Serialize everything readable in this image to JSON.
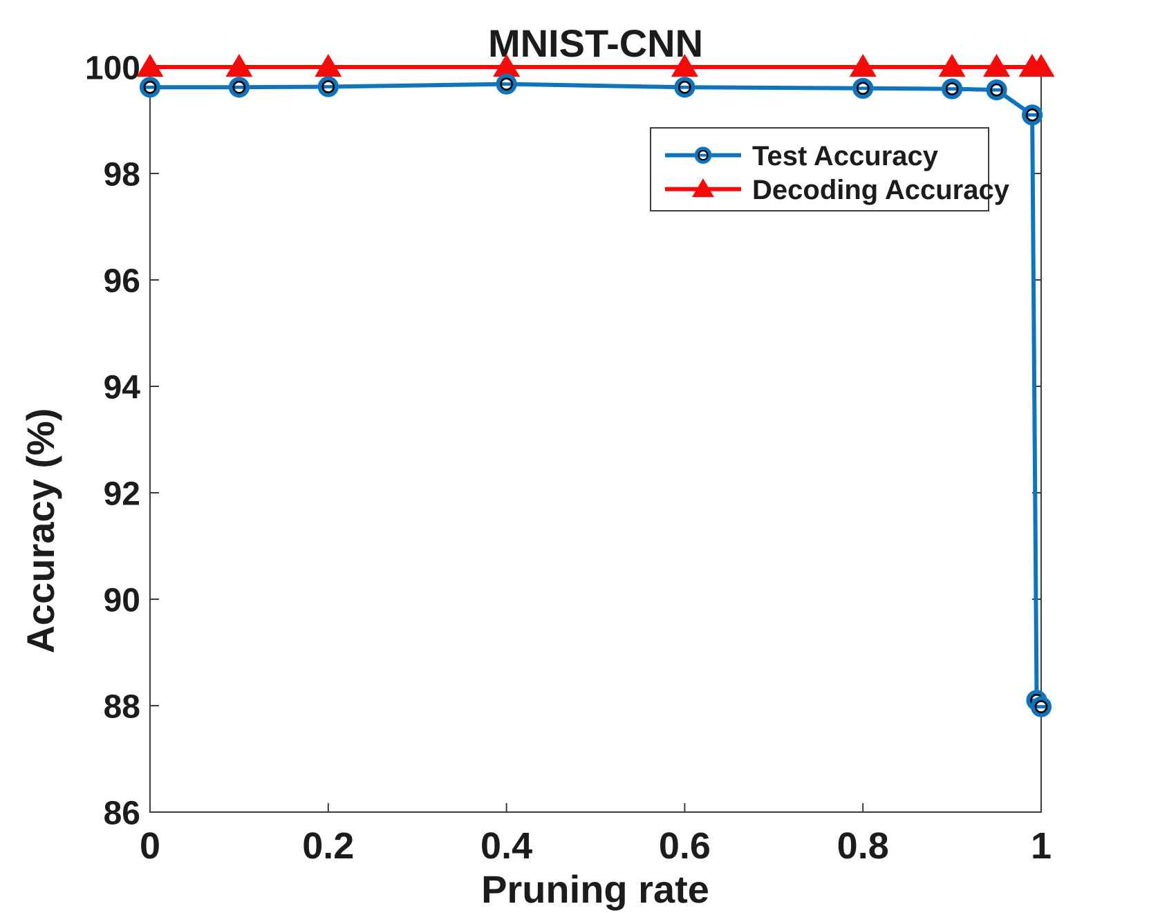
{
  "page_title": "MNIST-CNN accuracy vs pruning rate",
  "chart_data": {
    "type": "line",
    "title": "MNIST-CNN",
    "xlabel": "Pruning rate",
    "ylabel": "Accuracy (%)",
    "xlim": [
      0,
      1
    ],
    "ylim": [
      86,
      100
    ],
    "xticks": [
      0,
      0.2,
      0.4,
      0.6,
      0.8,
      1
    ],
    "xtick_labels": [
      "0",
      "0.2",
      "0.4",
      "0.6",
      "0.8",
      "1"
    ],
    "yticks": [
      86,
      88,
      90,
      92,
      94,
      96,
      98,
      100
    ],
    "ytick_labels": [
      "86",
      "88",
      "90",
      "92",
      "94",
      "96",
      "98",
      "100"
    ],
    "grid": false,
    "box": true,
    "legend_position": "upper right inside",
    "series": [
      {
        "name": "Test Accuracy",
        "color": "#0f74be",
        "marker": "circle",
        "x": [
          0,
          0.1,
          0.2,
          0.4,
          0.6,
          0.8,
          0.9,
          0.95,
          0.99,
          0.995,
          1.0
        ],
        "y": [
          99.62,
          99.62,
          99.63,
          99.68,
          99.62,
          99.6,
          99.59,
          99.57,
          99.1,
          88.1,
          87.98
        ]
      },
      {
        "name": "Decoding Accuracy",
        "color": "#f70a0a",
        "marker": "triangle",
        "x": [
          0,
          0.1,
          0.2,
          0.4,
          0.6,
          0.8,
          0.9,
          0.95,
          0.99,
          1.0
        ],
        "y": [
          100,
          100,
          100,
          100,
          100,
          100,
          100,
          100,
          100,
          100
        ]
      }
    ],
    "colors": {
      "axis": "#3c3c3c",
      "text": "#1c1c1c",
      "background": "#ffffff",
      "legend_border": "#3c3c3c"
    }
  }
}
